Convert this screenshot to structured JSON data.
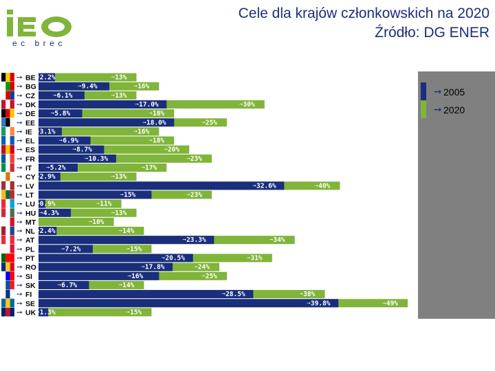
{
  "header": {
    "title_line1": "Cele dla krajów członkowskich na 2020",
    "title_line2": "Źródło: DG ENER"
  },
  "logo": {
    "text": "iEO",
    "subtitle": "ec brec"
  },
  "colors": {
    "series_2005": "#1a2e7c",
    "series_2020": "#80b43a",
    "panel": "#808080"
  },
  "chart_data": {
    "type": "bar",
    "orientation": "horizontal",
    "stacking": "overlay",
    "title": "Cele dla krajów członkowskich na 2020",
    "xlabel": "",
    "ylabel": "",
    "xlim": [
      0,
      50
    ],
    "categories": [
      "BE",
      "BG",
      "CZ",
      "DK",
      "DE",
      "EE",
      "IE",
      "EL",
      "ES",
      "FR",
      "IT",
      "CY",
      "LV",
      "LT",
      "LU",
      "HU",
      "MT",
      "NL",
      "AT",
      "PL",
      "PT",
      "RO",
      "SI",
      "SK",
      "FI",
      "SE",
      "UK"
    ],
    "series": [
      {
        "name": "2005",
        "values": [
          2.2,
          9.4,
          6.1,
          17.0,
          5.8,
          18.0,
          3.1,
          6.9,
          8.7,
          10.3,
          5.2,
          2.9,
          32.6,
          15.0,
          0.9,
          4.3,
          0.0,
          2.4,
          23.3,
          7.2,
          20.5,
          17.8,
          16.0,
          6.7,
          28.5,
          39.8,
          1.3
        ],
        "labels": [
          "2.2%",
          "9.4%",
          "6.1%",
          "17.0%",
          "5.8%",
          "18.0%",
          "3.1%",
          "6.9%",
          "8.7%",
          "10.3%",
          "5.2%",
          "2.9%",
          "32.6%",
          "15%",
          "0.9%",
          "4.3%",
          "",
          "2.4%",
          "23.3%",
          "7.2%",
          "20.5%",
          "17.8%",
          "16%",
          "6.7%",
          "28.5%",
          "39.8%",
          "1.3%"
        ]
      },
      {
        "name": "2020",
        "values": [
          13,
          16,
          13,
          30,
          18,
          25,
          16,
          18,
          20,
          23,
          17,
          13,
          40,
          23,
          11,
          13,
          10,
          14,
          34,
          15,
          31,
          24,
          25,
          14,
          38,
          49,
          15
        ],
        "labels": [
          "13%",
          "16%",
          "13%",
          "30%",
          "18%",
          "25%",
          "16%",
          "18%",
          "20%",
          "23%",
          "17%",
          "13%",
          "40%",
          "23%",
          "11%",
          "13%",
          "10%",
          "14%",
          "34%",
          "15%",
          "31%",
          "24%",
          "25%",
          "14%",
          "38%",
          "49%",
          "15%"
        ]
      }
    ],
    "legend": {
      "position": "right",
      "entries": [
        "2005",
        "2020"
      ]
    },
    "grid": false
  }
}
